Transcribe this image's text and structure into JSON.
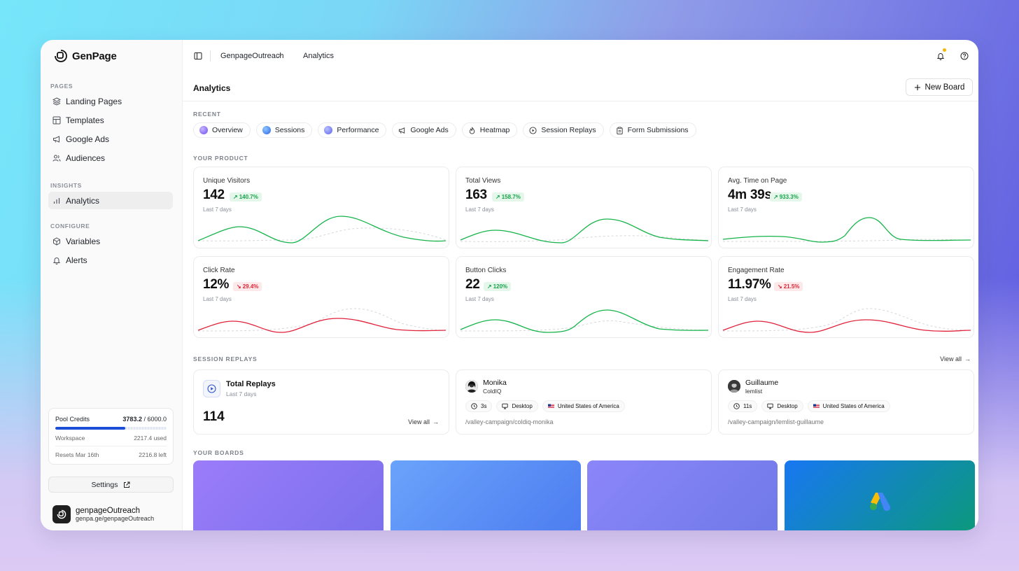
{
  "app": {
    "name": "GenPage"
  },
  "sidebar": {
    "sections": [
      {
        "label": "PAGES",
        "items": [
          {
            "label": "Landing Pages",
            "icon": "layers-icon"
          },
          {
            "label": "Templates",
            "icon": "template-icon"
          },
          {
            "label": "Google Ads",
            "icon": "megaphone-icon"
          },
          {
            "label": "Audiences",
            "icon": "users-icon"
          }
        ]
      },
      {
        "label": "INSIGHTS",
        "items": [
          {
            "label": "Analytics",
            "icon": "bar-chart-icon",
            "active": true
          }
        ]
      },
      {
        "label": "CONFIGURE",
        "items": [
          {
            "label": "Variables",
            "icon": "cube-icon"
          },
          {
            "label": "Alerts",
            "icon": "bell-icon"
          }
        ]
      }
    ],
    "credits": {
      "label": "Pool Credits",
      "used_value": "3783.2",
      "total_value": "/ 6000.0",
      "fraction": 0.63,
      "workspace_label": "Workspace",
      "workspace_value": "2217.4 used",
      "resets_label": "Resets Mar 16th",
      "resets_value": "2216.8 left"
    },
    "settings_label": "Settings",
    "account": {
      "name": "genpageOutreach",
      "url": "genpa.ge/genpageOutreach"
    }
  },
  "topbar": {
    "breadcrumb": [
      "GenpageOutreach",
      "Analytics"
    ],
    "separator": ">",
    "notification_dot_color": "#f5b60b"
  },
  "page": {
    "title": "Analytics",
    "new_board_label": "New Board"
  },
  "recent": {
    "label": "RECENT",
    "chips": [
      {
        "label": "Overview",
        "icon": "orb-icon"
      },
      {
        "label": "Sessions",
        "icon": "orb-icon"
      },
      {
        "label": "Performance",
        "icon": "orb-icon"
      },
      {
        "label": "Google Ads",
        "icon": "megaphone-icon"
      },
      {
        "label": "Heatmap",
        "icon": "flame-icon"
      },
      {
        "label": "Session Replays",
        "icon": "replay-icon"
      },
      {
        "label": "Form Submissions",
        "icon": "clipboard-icon"
      }
    ]
  },
  "product": {
    "label": "YOUR PRODUCT",
    "metrics": [
      {
        "label": "Unique Visitors",
        "value": "142",
        "change": "140.7%",
        "trend": "up",
        "period": "Last 7 days"
      },
      {
        "label": "Total Views",
        "value": "163",
        "change": "158.7%",
        "trend": "up",
        "period": "Last 7 days"
      },
      {
        "label": "Avg. Time on Page",
        "value": "4m 39s",
        "change": "933.3%",
        "trend": "up",
        "period": "Last 7 days"
      },
      {
        "label": "Click Rate",
        "value": "12%",
        "change": "29.4%",
        "trend": "down",
        "period": "Last 7 days"
      },
      {
        "label": "Button Clicks",
        "value": "22",
        "change": "120%",
        "trend": "up",
        "period": "Last 7 days"
      },
      {
        "label": "Engagement Rate",
        "value": "11.97%",
        "change": "21.5%",
        "trend": "down",
        "period": "Last 7 days"
      }
    ],
    "colors": {
      "up": "#16b34a",
      "down": "#e0223a",
      "previous": "#d4d7dc"
    }
  },
  "replays": {
    "label": "SESSION REPLAYS",
    "view_all_label": "View all",
    "total": {
      "title": "Total Replays",
      "period": "Last 7 days",
      "value": "114",
      "view_all_label": "View all"
    },
    "sessions": [
      {
        "name": "Monika",
        "company": "ColdIQ",
        "duration": "3s",
        "device": "Desktop",
        "country": "United States of America",
        "path": "/valley-campaign/coldiq-monika"
      },
      {
        "name": "Guillaume",
        "company": "lemlist",
        "duration": "11s",
        "device": "Desktop",
        "country": "United States of America",
        "path": "/valley-campaign/lemlist-guillaume"
      }
    ]
  },
  "boards": {
    "label": "YOUR BOARDS",
    "items": [
      {
        "gradient": [
          "#9b7cf9",
          "#7a70ec"
        ]
      },
      {
        "gradient": [
          "#6aa3fb",
          "#4d7cf0"
        ]
      },
      {
        "gradient": [
          "#8b86f9",
          "#6f79e8"
        ]
      },
      {
        "gradient": [
          "#1877f2",
          "#0b9a7a"
        ],
        "icon": "google-ads-icon"
      }
    ]
  }
}
